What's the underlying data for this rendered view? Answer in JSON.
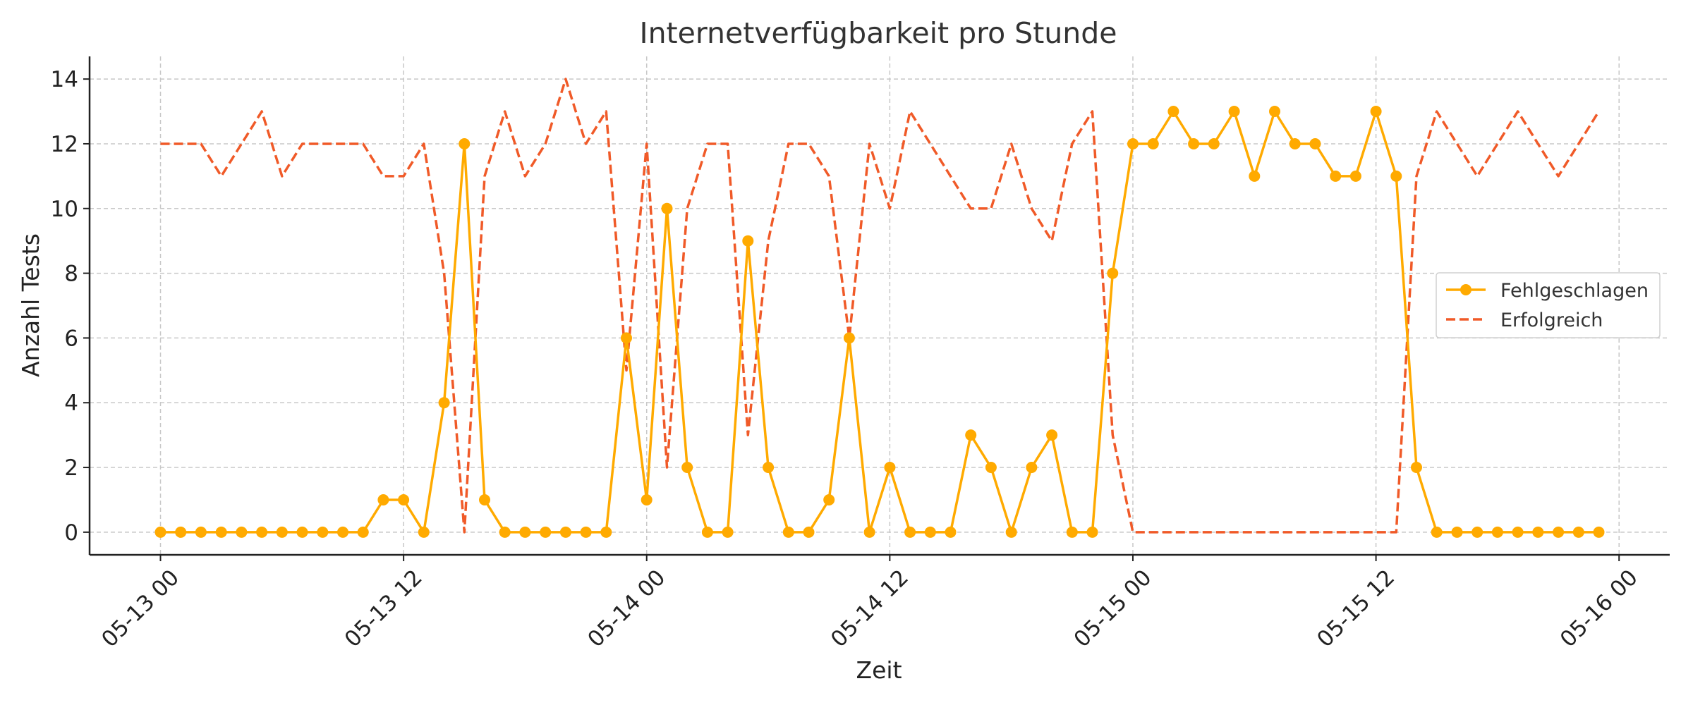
{
  "chart_data": {
    "type": "line",
    "title": "Internetverfügbarkeit pro Stunde",
    "xlabel": "Zeit",
    "ylabel": "Anzahl Tests",
    "x_start": "2024-05-13 00:00",
    "x_interval_hours": 1,
    "x_ticks": [
      "05-13 00",
      "05-13 12",
      "05-14 00",
      "05-14 12",
      "05-15 00",
      "05-15 12",
      "05-16 00"
    ],
    "y_ticks": [
      0,
      2,
      4,
      6,
      8,
      10,
      12,
      14
    ],
    "ylim": [
      -0.7,
      14.7
    ],
    "xlim_hours": [
      -3.5,
      74.5
    ],
    "grid": true,
    "legend_position": "center-right",
    "series": [
      {
        "name": "Fehlgeschlagen",
        "color": "#FFAA00",
        "style": "solid-with-markers",
        "values": [
          0,
          0,
          0,
          0,
          0,
          0,
          0,
          0,
          0,
          0,
          0,
          1,
          1,
          0,
          4,
          12,
          1,
          0,
          0,
          0,
          0,
          0,
          0,
          6,
          1,
          10,
          2,
          0,
          0,
          9,
          2,
          0,
          0,
          1,
          6,
          0,
          2,
          0,
          0,
          0,
          3,
          2,
          0,
          2,
          3,
          0,
          0,
          8,
          12,
          12,
          13,
          12,
          12,
          13,
          11,
          13,
          12,
          12,
          11,
          11,
          13,
          11,
          2,
          0,
          0,
          0,
          0,
          0,
          0,
          0,
          0,
          0
        ]
      },
      {
        "name": "Erfolgreich",
        "color": "#F05A28",
        "style": "dashed",
        "values": [
          12,
          12,
          12,
          11,
          12,
          13,
          11,
          12,
          12,
          12,
          12,
          11,
          11,
          12,
          8,
          0,
          11,
          13,
          11,
          12,
          14,
          12,
          13,
          5,
          12,
          2,
          10,
          12,
          12,
          3,
          9,
          12,
          12,
          11,
          6,
          12,
          10,
          13,
          12,
          11,
          10,
          10,
          12,
          10,
          9,
          12,
          13,
          3,
          0,
          0,
          0,
          0,
          0,
          0,
          0,
          0,
          0,
          0,
          0,
          0,
          0,
          0,
          11,
          13,
          12,
          11,
          12,
          13,
          12,
          11,
          12,
          13
        ]
      }
    ]
  }
}
